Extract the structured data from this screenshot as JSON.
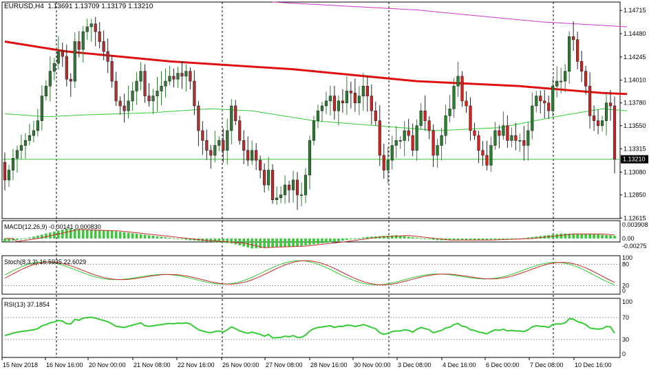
{
  "header": {
    "symbol": "EURUSD,H4",
    "ohlc": "1.13691 1.13709 1.13179 1.13210"
  },
  "price_label": "1.13210",
  "colors": {
    "bull": "#2e7d32",
    "bear": "#c62828",
    "ma_slow": "#e01010",
    "ma_fast": "#33cc33",
    "ma_long": "#cc33cc",
    "grid": "#000000"
  },
  "panels": {
    "macd": {
      "label": "MACD(12,26,9) -0.00141 0.000830",
      "ticks": [
        "0.003908",
        "0.00",
        "-0.00275"
      ]
    },
    "stoch": {
      "label": "Stoch(8,3,3) 16.5935 22.6029",
      "ticks": [
        "100",
        "80",
        "20",
        "0"
      ]
    },
    "rsi": {
      "label": "RSI(13) 37.1854",
      "ticks": [
        "100",
        "70",
        "30",
        "0"
      ]
    }
  },
  "chart_data": {
    "type": "candlestick",
    "title": "EURUSD,H4",
    "ylim": [
      1.1261,
      1.148
    ],
    "y_ticks": [
      "1.14715",
      "1.14480",
      "1.14245",
      "1.14010",
      "1.13780",
      "1.13550",
      "1.13315",
      "1.13080",
      "1.12850",
      "1.12615"
    ],
    "x_ticks": [
      "15 Nov 2018",
      "16 Nov 16:00",
      "20 Nov 00:00",
      "21 Nov 08:00",
      "22 Nov 16:00",
      "26 Nov 00:00",
      "27 Nov 08:00",
      "28 Nov 16:00",
      "30 Nov 00:00",
      "3 Dec 08:00",
      "4 Dec 16:00",
      "6 Dec 00:00",
      "7 Dec 08:00",
      "10 Dec 16:00"
    ],
    "closes": [
      1.13,
      1.131,
      1.1322,
      1.133,
      1.1335,
      1.134,
      1.1345,
      1.135,
      1.136,
      1.1385,
      1.1395,
      1.141,
      1.1418,
      1.143,
      1.1425,
      1.1402,
      1.14,
      1.144,
      1.1432,
      1.145,
      1.1455,
      1.1458,
      1.145,
      1.144,
      1.143,
      1.142,
      1.14,
      1.138,
      1.1375,
      1.137,
      1.138,
      1.139,
      1.14,
      1.141,
      1.1385,
      1.138,
      1.1385,
      1.139,
      1.1395,
      1.14,
      1.1405,
      1.1402,
      1.1408,
      1.1405,
      1.141,
      1.14,
      1.1375,
      1.135,
      1.134,
      1.133,
      1.1325,
      1.1335,
      1.134,
      1.133,
      1.135,
      1.1375,
      1.136,
      1.134,
      1.133,
      1.132,
      1.133,
      1.132,
      1.131,
      1.1295,
      1.131,
      1.128,
      1.1282,
      1.1285,
      1.1295,
      1.129,
      1.13,
      1.1285,
      1.1285,
      1.1305,
      1.134,
      1.136,
      1.137,
      1.1375,
      1.138,
      1.1385,
      1.137,
      1.138,
      1.1378,
      1.139,
      1.1388,
      1.1378,
      1.1385,
      1.1395,
      1.1385,
      1.137,
      1.136,
      1.1325,
      1.131,
      1.132,
      1.1335,
      1.134,
      1.134,
      1.135,
      1.1345,
      1.133,
      1.1355,
      1.137,
      1.136,
      1.135,
      1.1325,
      1.1335,
      1.1345,
      1.1365,
      1.1372,
      1.1395,
      1.1405,
      1.138,
      1.1375,
      1.135,
      1.1345,
      1.133,
      1.1325,
      1.1315,
      1.1335,
      1.135,
      1.1345,
      1.1355,
      1.134,
      1.1345,
      1.134,
      1.134,
      1.1335,
      1.135,
      1.1375,
      1.1385,
      1.138,
      1.1378,
      1.137,
      1.1395,
      1.14,
      1.14,
      1.141,
      1.1445,
      1.1442,
      1.142,
      1.141,
      1.1395,
      1.1365,
      1.136,
      1.1355,
      1.136,
      1.1378,
      1.1375,
      1.1321
    ],
    "ma_slow_points": [
      [
        0,
        1.144
      ],
      [
        15,
        1.143
      ],
      [
        40,
        1.142
      ],
      [
        70,
        1.1412
      ],
      [
        100,
        1.14
      ],
      [
        125,
        1.1395
      ],
      [
        145,
        1.1388
      ],
      [
        151,
        1.1387
      ]
    ],
    "ma_fast_points": [
      [
        0,
        1.1367
      ],
      [
        10,
        1.1364
      ],
      [
        20,
        1.1366
      ],
      [
        35,
        1.1368
      ],
      [
        50,
        1.1372
      ],
      [
        60,
        1.137
      ],
      [
        75,
        1.136
      ],
      [
        90,
        1.1355
      ],
      [
        105,
        1.135
      ],
      [
        120,
        1.1353
      ],
      [
        135,
        1.1365
      ],
      [
        145,
        1.1372
      ],
      [
        151,
        1.137
      ]
    ],
    "ma_long_points": [
      [
        65,
        1.148
      ],
      [
        100,
        1.1472
      ],
      [
        130,
        1.146
      ],
      [
        151,
        1.1455
      ]
    ]
  }
}
